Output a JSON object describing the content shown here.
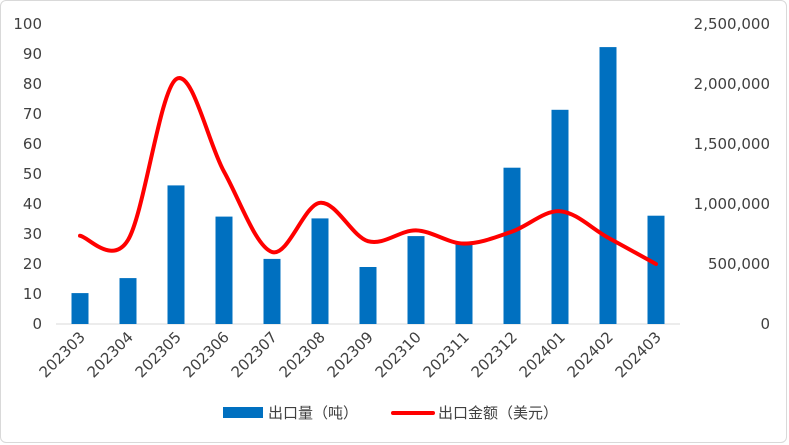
{
  "chart_data": {
    "type": "bar",
    "categories": [
      "202303",
      "202304",
      "202305",
      "202306",
      "202307",
      "202308",
      "202309",
      "202310",
      "202311",
      "202312",
      "202401",
      "202402",
      "202403"
    ],
    "series": [
      {
        "name": "出口量（吨）",
        "type": "bar",
        "axis": "left",
        "color": "#0070C0",
        "values": [
          10.3,
          15.3,
          46.2,
          35.8,
          21.7,
          35.2,
          19.0,
          29.3,
          27.5,
          52.1,
          71.4,
          92.3,
          36.1
        ]
      },
      {
        "name": "出口金额（美元）",
        "type": "line",
        "smooth": true,
        "axis": "right",
        "color": "#FF0000",
        "values": [
          735000,
          700000,
          2040000,
          1270000,
          600000,
          1010000,
          690000,
          780000,
          670000,
          770000,
          940000,
          720000,
          500000
        ]
      }
    ],
    "y_left": {
      "min": 0,
      "max": 100,
      "ticks": [
        0,
        10,
        20,
        30,
        40,
        50,
        60,
        70,
        80,
        90,
        100
      ],
      "tick_labels": [
        "0",
        "10",
        "20",
        "30",
        "40",
        "50",
        "60",
        "70",
        "80",
        "90",
        "100"
      ]
    },
    "y_right": {
      "min": 0,
      "max": 2500000,
      "ticks": [
        0,
        500000,
        1000000,
        1500000,
        2000000,
        2500000
      ],
      "tick_labels": [
        "0",
        "500,000",
        "1,000,000",
        "1,500,000",
        "2,000,000",
        "2,500,000"
      ]
    },
    "title": "",
    "xlabel": "",
    "ylabel": "",
    "grid": false,
    "legend_position": "bottom"
  }
}
